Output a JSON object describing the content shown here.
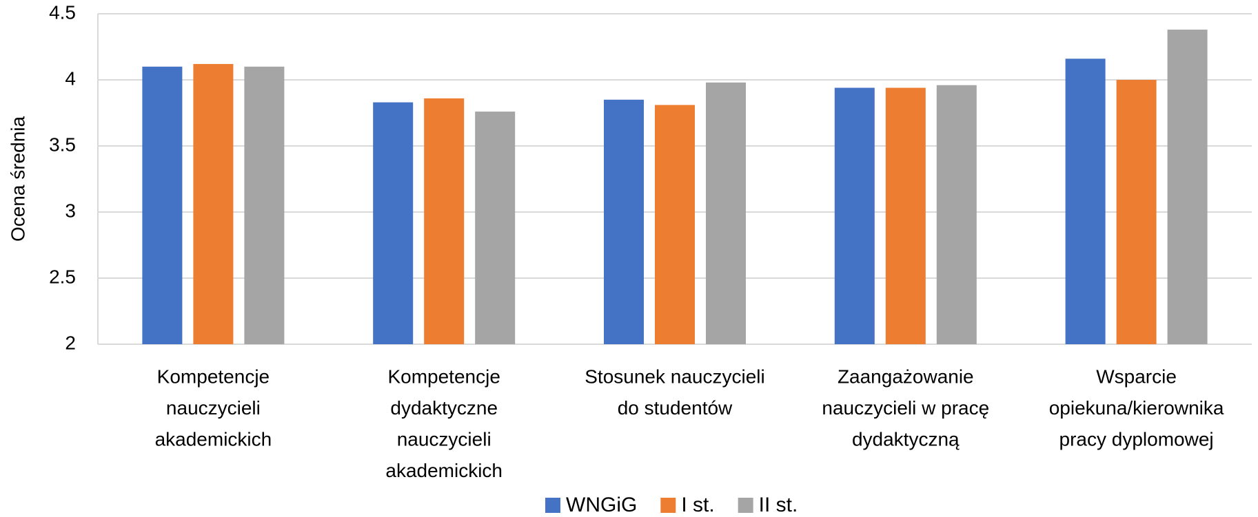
{
  "chart_data": {
    "type": "bar",
    "y_label": "Ocena średnia",
    "categories": [
      [
        "Kompetencje",
        "nauczycieli",
        "akademickich"
      ],
      [
        "Kompetencje",
        "dydaktyczne",
        "nauczycieli",
        "akademickich"
      ],
      [
        "Stosunek nauczycieli",
        "do studentów"
      ],
      [
        "Zaangażowanie",
        "nauczycieli w pracę",
        "dydaktyczną"
      ],
      [
        "Wsparcie",
        "opiekuna/kierownika",
        "pracy dyplomowej"
      ]
    ],
    "series": [
      {
        "name": "WNGiG",
        "color": "#4472c4",
        "values": [
          4.1,
          3.83,
          3.85,
          3.94,
          4.16
        ]
      },
      {
        "name": "I st.",
        "color": "#ed7d31",
        "values": [
          4.12,
          3.86,
          3.81,
          3.94,
          4.0
        ]
      },
      {
        "name": "II st.",
        "color": "#a5a5a5",
        "values": [
          4.1,
          3.76,
          3.98,
          3.96,
          4.38
        ]
      }
    ],
    "ylim": [
      2,
      4.5
    ],
    "yticks": [
      2,
      2.5,
      3,
      3.5,
      4,
      4.5
    ],
    "grid": true,
    "legend": "bottom"
  }
}
